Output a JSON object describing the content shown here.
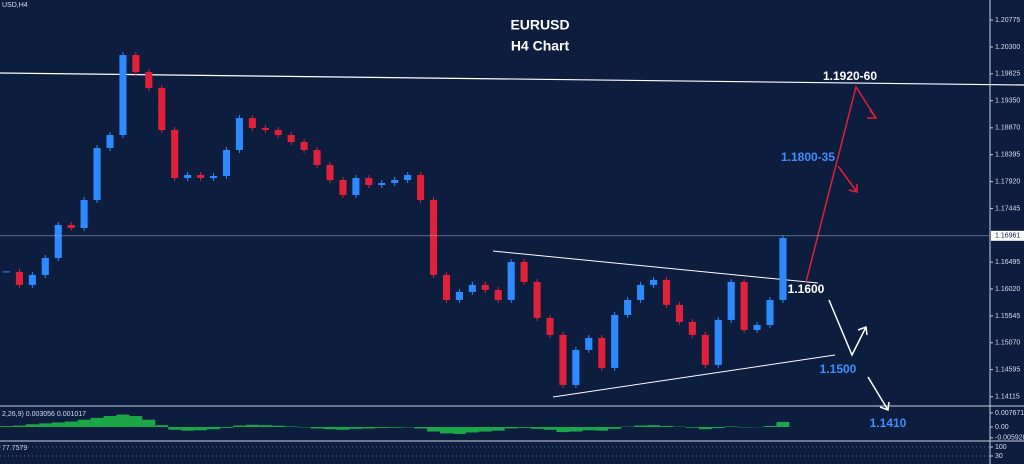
{
  "chart_data": [
    {
      "type": "candlestick",
      "title": "USD,H4",
      "closes": [
        1.16323,
        1.16093,
        1.16269,
        1.1657,
        1.17153,
        1.171,
        1.17594,
        1.18513,
        1.18743,
        1.20157,
        1.19856,
        1.19574,
        1.18831,
        1.17983,
        1.18036,
        1.17983,
        1.18018,
        1.18478,
        1.19043,
        1.18867,
        1.18831,
        1.18743,
        1.18619,
        1.18478,
        1.18213,
        1.17948,
        1.17683,
        1.17983,
        1.17859,
        1.17895,
        1.17948,
        1.18036,
        1.17594,
        1.16269,
        1.15827,
        1.15969,
        1.16093,
        1.16004,
        1.15827,
        1.16499,
        1.16145,
        1.15509,
        1.15209,
        1.14325,
        1.14944,
        1.15156,
        1.14626,
        1.15562,
        1.15827,
        1.16093,
        1.16181,
        1.15739,
        1.15439,
        1.15209,
        1.14679,
        1.15474,
        1.16145,
        1.15297,
        1.15385,
        1.15827,
        1.16923
      ],
      "up_color": "#2e8bff",
      "down_color": "#e0213a",
      "xlim": [
        -0.5,
        76
      ],
      "ylim": [
        1.1397,
        1.2113
      ],
      "yticks": [
        1.20775,
        {
          "value": 1.203,
          "label": "1.20300"
        },
        1.19825,
        {
          "value": 1.1935,
          "label": "1.19350"
        },
        {
          "value": 1.1887,
          "label": "1.18870"
        },
        1.18395,
        {
          "value": 1.1792,
          "label": "1.17920"
        },
        1.17445,
        1.16495,
        {
          "value": 1.1602,
          "label": "1.16020"
        },
        1.15545,
        {
          "value": 1.1507,
          "label": "1.15070"
        },
        1.14595,
        1.14115
      ],
      "last_price": 1.16961,
      "annotations": [
        "EURUSD",
        "H4 Chart",
        "1.1920-60",
        "1.1800-35",
        "1.1600",
        "1.1500",
        "1.1410"
      ]
    },
    {
      "type": "bar",
      "title": "2,26,9) 0.003056 0.001017",
      "color": "#1fc04a",
      "values": [
        0.0005,
        0.0008,
        0.0015,
        0.002,
        0.0025,
        0.003,
        0.004,
        0.005,
        0.006,
        0.0068,
        0.006,
        0.004,
        0.001,
        -0.0015,
        -0.002,
        -0.0018,
        -0.0012,
        -0.0005,
        0.0008,
        0.0012,
        0.001,
        0.0007,
        0.0003,
        -0.0002,
        -0.0008,
        -0.0012,
        -0.0015,
        -0.001,
        -0.0008,
        -0.0005,
        -0.0004,
        -0.0002,
        -0.0008,
        -0.0025,
        -0.0035,
        -0.0038,
        -0.003,
        -0.0025,
        -0.002,
        -0.0008,
        -0.0005,
        -0.001,
        -0.0015,
        -0.0028,
        -0.0025,
        -0.0018,
        -0.002,
        -0.001,
        0.0002,
        0.0008,
        0.001,
        0.0006,
        0.0002,
        -0.0004,
        -0.0012,
        -0.0006,
        0.0003,
        -0.0002,
        -0.0001,
        0.0006,
        0.0028
      ],
      "ylim": [
        -0.00712,
        0.01041
      ],
      "yticks": [
        0.007671,
        {
          "value": 0,
          "label": "0.00"
        },
        -0.005928
      ]
    },
    {
      "type": "indicator",
      "title": "77.7579",
      "ylim": [
        -32,
        139
      ],
      "yticks": [
        100,
        30
      ]
    }
  ]
}
